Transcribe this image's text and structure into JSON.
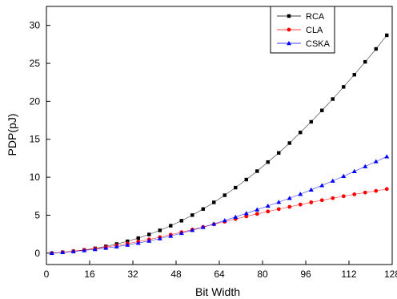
{
  "chart_data": {
    "type": "line",
    "title": "",
    "xlabel": "Bit Width",
    "ylabel": "PDP(pJ)",
    "xlim": [
      0,
      128
    ],
    "ylim": [
      -1.5,
      32.5
    ],
    "xticks": [
      0,
      16,
      32,
      48,
      64,
      80,
      96,
      112,
      128
    ],
    "yticks": [
      0,
      5,
      10,
      15,
      20,
      25,
      30
    ],
    "grid": false,
    "legend_position": "top-right",
    "x": [
      2,
      6,
      10,
      14,
      18,
      22,
      26,
      30,
      34,
      38,
      42,
      46,
      50,
      54,
      58,
      62,
      66,
      70,
      74,
      78,
      82,
      86,
      90,
      94,
      98,
      102,
      106,
      110,
      114,
      118,
      122,
      126
    ],
    "series": [
      {
        "name": "RCA",
        "color": "#000000",
        "marker": "square",
        "values": [
          0.0,
          0.11,
          0.24,
          0.41,
          0.63,
          0.89,
          1.2,
          1.56,
          1.98,
          2.46,
          3.0,
          3.61,
          4.27,
          5.01,
          5.81,
          6.69,
          7.63,
          8.63,
          9.69,
          10.8,
          12.0,
          13.2,
          14.5,
          15.9,
          17.3,
          18.8,
          20.3,
          21.9,
          23.5,
          25.2,
          26.9,
          28.7
        ]
      },
      {
        "name": "CLA",
        "color": "#ff0000",
        "marker": "circle",
        "values": [
          0.0,
          0.12,
          0.26,
          0.42,
          0.6,
          0.8,
          1.02,
          1.26,
          1.52,
          1.8,
          2.1,
          2.42,
          2.76,
          3.1,
          3.45,
          3.8,
          4.15,
          4.5,
          4.84,
          5.17,
          5.49,
          5.8,
          6.1,
          6.4,
          6.69,
          6.97,
          7.24,
          7.5,
          7.75,
          7.98,
          8.2,
          8.45
        ]
      },
      {
        "name": "CSKA",
        "color": "#0000ff",
        "marker": "triangle",
        "values": [
          0.0,
          0.1,
          0.22,
          0.35,
          0.5,
          0.67,
          0.86,
          1.08,
          1.33,
          1.61,
          1.92,
          2.26,
          2.63,
          3.02,
          3.42,
          3.85,
          4.3,
          4.76,
          5.24,
          5.73,
          6.22,
          6.72,
          7.24,
          7.78,
          8.34,
          8.92,
          9.52,
          10.14,
          10.77,
          11.42,
          12.07,
          12.72
        ]
      }
    ]
  }
}
